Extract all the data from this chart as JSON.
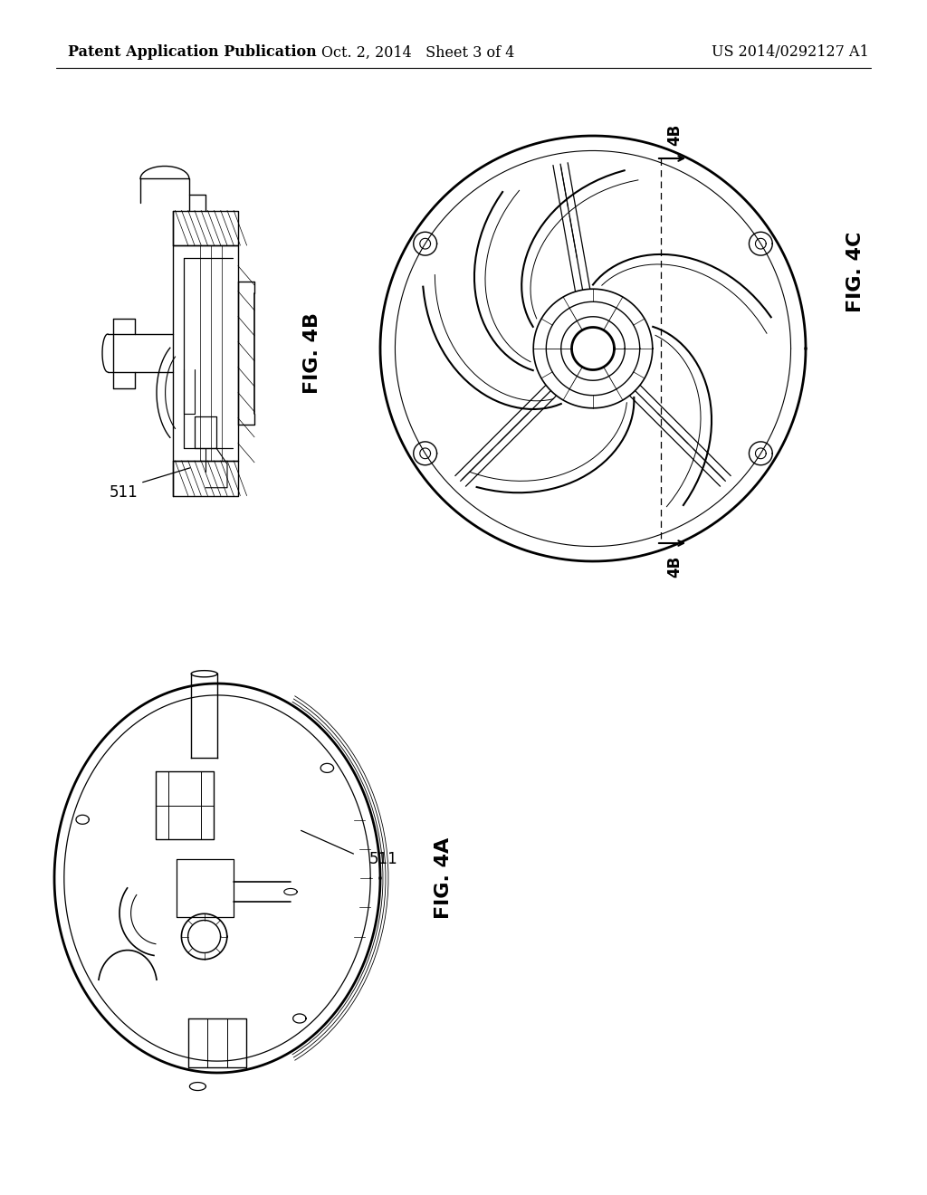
{
  "background_color": "#ffffff",
  "header_left": "Patent Application Publication",
  "header_center": "Oct. 2, 2014   Sheet 3 of 4",
  "header_right": "US 2014/0292127 A1",
  "header_fontsize": 11.5,
  "text_color": "#000000",
  "line_color": "#000000",
  "fig4b_label": "FIG. 4B",
  "fig4c_label": "FIG. 4C",
  "fig4a_label": "FIG. 4A",
  "label_511_side": "511",
  "label_511_persp": "511",
  "label_4b_top": "4B",
  "label_4b_bot": "4B",
  "fig_label_fontsize": 16,
  "annot_fontsize": 12
}
